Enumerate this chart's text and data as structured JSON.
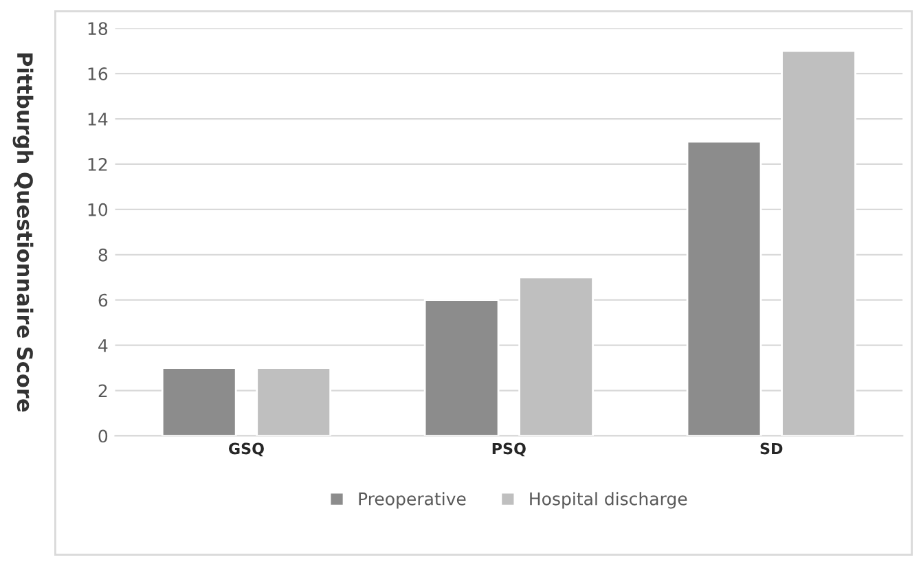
{
  "chart_data": {
    "type": "bar",
    "ylabel": "Pittburgh Questionnaire Score",
    "categories": [
      "GSQ",
      "PSQ",
      "SD"
    ],
    "series": [
      {
        "name": "Preoperative",
        "color": "#8c8c8c",
        "values": [
          3,
          6,
          13
        ]
      },
      {
        "name": "Hospital discharge",
        "color": "#bfbfbf",
        "values": [
          3,
          7,
          17
        ]
      }
    ],
    "ylim": [
      0,
      18
    ],
    "yticks": [
      0,
      2,
      4,
      6,
      8,
      10,
      12,
      14,
      16,
      18
    ],
    "grid": "y",
    "legend": "bottom"
  }
}
